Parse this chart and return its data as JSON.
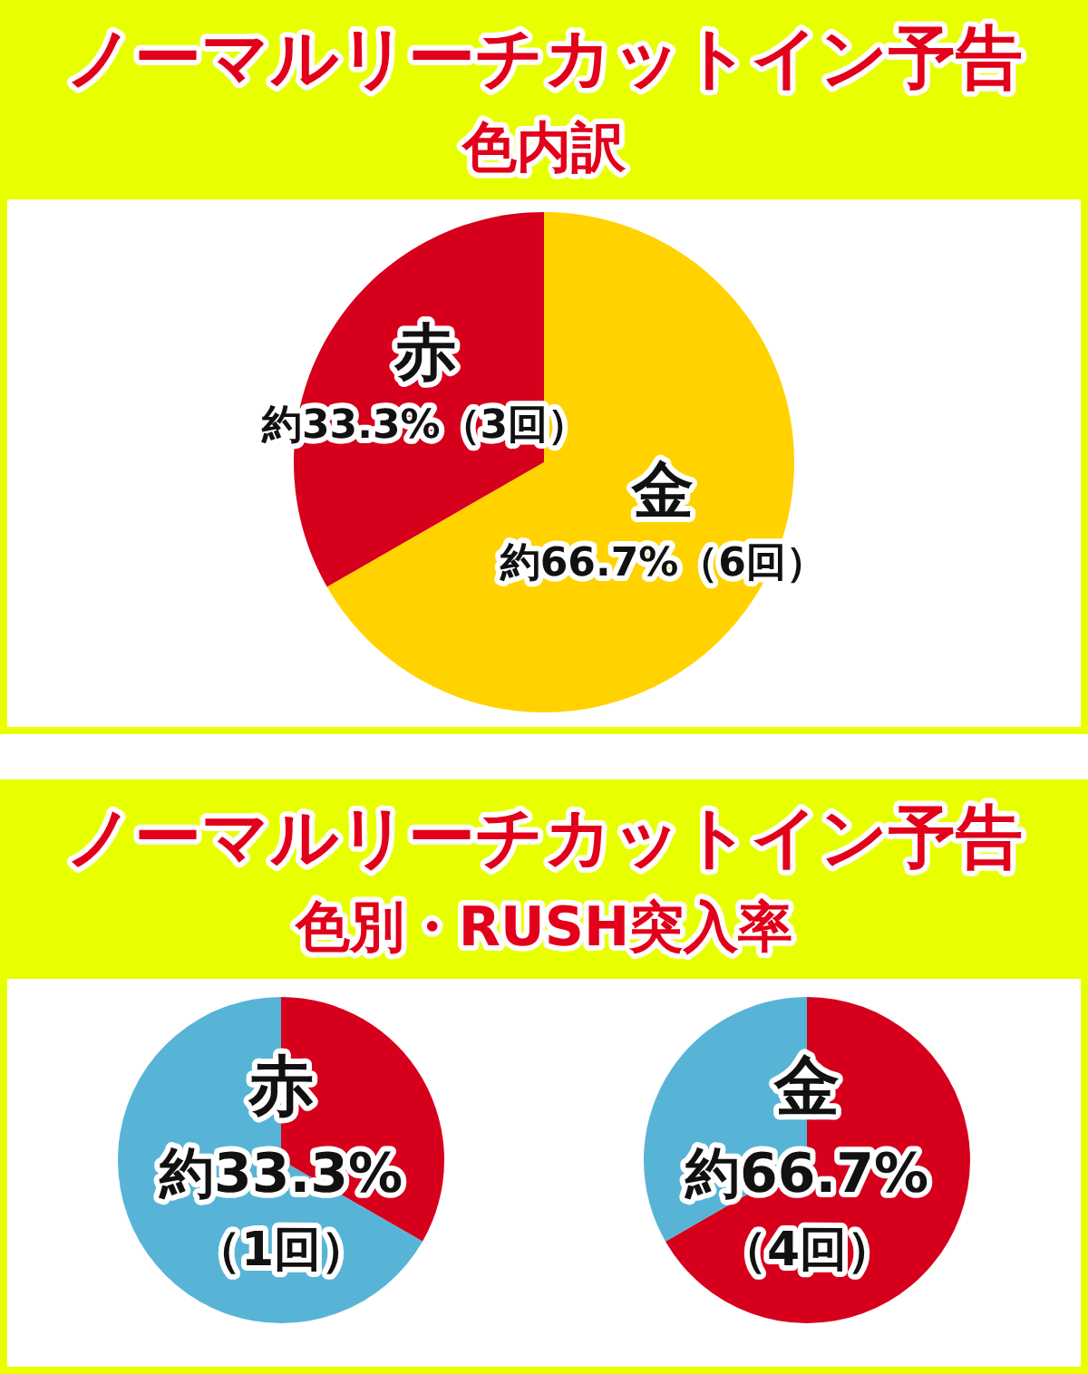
{
  "chart_data": [
    {
      "type": "pie",
      "title": "ノーマルリーチカットイン予告",
      "subtitle": "色内訳",
      "categories": [
        "金",
        "赤"
      ],
      "values": [
        66.7,
        33.3
      ],
      "colors": [
        "#ffd200",
        "#d7001c"
      ],
      "value_labels": [
        "約66.7%（6回）",
        "約33.3%（3回）"
      ]
    },
    {
      "type": "other",
      "title": "ノーマルリーチカットイン予告",
      "subtitle": "色別・RUSH突入率"
    },
    {
      "type": "pie",
      "title": "赤",
      "categories": [
        null,
        null
      ],
      "values": [
        33.3,
        66.7
      ],
      "colors": [
        "#d7001c",
        "#58b4d6"
      ],
      "annotations": [
        "約33.3%（1回）"
      ]
    },
    {
      "type": "pie",
      "title": "金",
      "categories": [
        null,
        null
      ],
      "values": [
        66.7,
        33.3
      ],
      "colors": [
        "#d7001c",
        "#58b4d6"
      ],
      "annotations": [
        "約66.7%（4回）"
      ]
    }
  ]
}
